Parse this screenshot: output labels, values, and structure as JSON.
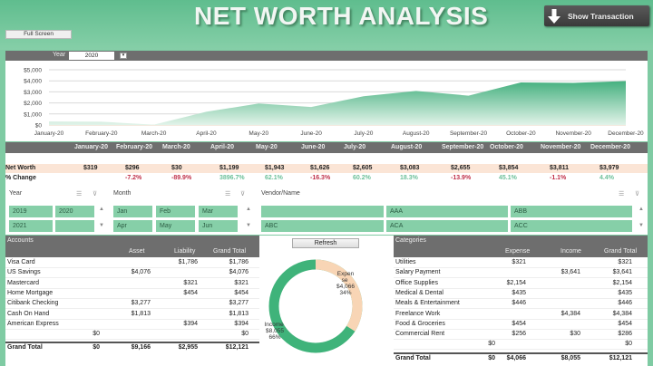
{
  "header": {
    "title": "NET WORTH ANALYSIS",
    "show_transaction_label": "Show Transaction",
    "full_screen_label": "Full Screen",
    "colors": {
      "accent": "#86cfa8",
      "dark_bar": "#6e6e6e",
      "title": "#f2f6f3"
    }
  },
  "year_filter": {
    "label": "Year",
    "value": "2020"
  },
  "chart_data": {
    "type": "area",
    "title": "",
    "xlabel": "",
    "ylabel": "",
    "categories": [
      "January-20",
      "February-20",
      "March-20",
      "April-20",
      "May-20",
      "June-20",
      "July-20",
      "August-20",
      "September-20",
      "October-20",
      "November-20",
      "December-20"
    ],
    "series": [
      {
        "name": "Net Worth",
        "values": [
          319,
          296,
          30,
          1199,
          1943,
          1626,
          2605,
          3083,
          2655,
          3854,
          3811,
          3979
        ]
      }
    ],
    "y_ticks": [
      "$5,000",
      "$4,000",
      "$3,000",
      "$2,000",
      "$1,000",
      "$0"
    ],
    "ylim": [
      0,
      5000
    ],
    "grid": true,
    "legend": "none"
  },
  "summary": {
    "months": [
      "January-20",
      "February-20",
      "March-20",
      "April-20",
      "May-20",
      "June-20",
      "July-20",
      "August-20",
      "September-20",
      "October-20",
      "November-20",
      "December-20"
    ],
    "net_worth_label": "Net Worth",
    "change_label": "% Change",
    "net_worth": [
      "$319",
      "$296",
      "$30",
      "$1,199",
      "$1,943",
      "$1,626",
      "$2,605",
      "$3,083",
      "$2,655",
      "$3,854",
      "$3,811",
      "$3,979"
    ],
    "change": [
      "",
      "-7.2%",
      "-89.9%",
      "3896.7%",
      "62.1%",
      "-16.3%",
      "60.2%",
      "18.3%",
      "-13.9%",
      "45.1%",
      "-1.1%",
      "4.4%"
    ]
  },
  "slicers": {
    "year": {
      "title": "Year",
      "items": [
        "2019",
        "2020",
        "2021",
        ""
      ]
    },
    "month": {
      "title": "Month",
      "items": [
        "Jan",
        "Feb",
        "Mar",
        "Apr",
        "May",
        "Jun"
      ]
    },
    "vendor": {
      "title": "Vendor/Name",
      "items": [
        "",
        "AAA",
        "ABB",
        "ABC",
        "ACA",
        "ACC"
      ]
    }
  },
  "accounts": {
    "title": "Accounts",
    "columns": [
      "Asset",
      "Liability",
      "Grand Total"
    ],
    "rows": [
      {
        "name": "Visa Card",
        "blank": "",
        "asset": "",
        "liability": "$1,786",
        "total": "$1,786"
      },
      {
        "name": "US Savings",
        "blank": "",
        "asset": "$4,076",
        "liability": "",
        "total": "$4,076"
      },
      {
        "name": "Mastercard",
        "blank": "",
        "asset": "",
        "liability": "$321",
        "total": "$321"
      },
      {
        "name": "Home Mortgage",
        "blank": "",
        "asset": "",
        "liability": "$454",
        "total": "$454"
      },
      {
        "name": "Citibank Checking",
        "blank": "",
        "asset": "$3,277",
        "liability": "",
        "total": "$3,277"
      },
      {
        "name": "Cash On Hand",
        "blank": "",
        "asset": "$1,813",
        "liability": "",
        "total": "$1,813"
      },
      {
        "name": "American Express",
        "blank": "",
        "asset": "",
        "liability": "$394",
        "total": "$394"
      },
      {
        "name": "",
        "blank": "$0",
        "asset": "",
        "liability": "",
        "total": "$0"
      }
    ],
    "total": {
      "name": "Grand Total",
      "blank": "$0",
      "asset": "$9,166",
      "liability": "$2,955",
      "total": "$12,121"
    }
  },
  "middle": {
    "refresh_label": "Refresh",
    "donut": {
      "expense_label": "Expen se",
      "expense_value": "$4,066",
      "expense_pct": "34%",
      "income_label": "Income",
      "income_value": "$8,055",
      "income_pct": "66%",
      "expense_color": "#f8d5b5",
      "income_color": "#3fb37a"
    }
  },
  "categories": {
    "title": "Categories",
    "columns": [
      "Expense",
      "Income",
      "Grand Total"
    ],
    "rows": [
      {
        "name": "Utilities",
        "blank": "",
        "expense": "$321",
        "income": "",
        "total": "$321"
      },
      {
        "name": "Salary Payment",
        "blank": "",
        "expense": "",
        "income": "$3,641",
        "total": "$3,641"
      },
      {
        "name": "Office Supplies",
        "blank": "",
        "expense": "$2,154",
        "income": "",
        "total": "$2,154"
      },
      {
        "name": "Medical & Dental",
        "blank": "",
        "expense": "$435",
        "income": "",
        "total": "$435"
      },
      {
        "name": "Meals & Entertainment",
        "blank": "",
        "expense": "$446",
        "income": "",
        "total": "$446"
      },
      {
        "name": "Freelance Work",
        "blank": "",
        "expense": "",
        "income": "$4,384",
        "total": "$4,384"
      },
      {
        "name": "Food & Groceries",
        "blank": "",
        "expense": "$454",
        "income": "",
        "total": "$454"
      },
      {
        "name": "Commercial Rent",
        "blank": "",
        "expense": "$256",
        "income": "$30",
        "total": "$286"
      },
      {
        "name": "",
        "blank": "$0",
        "expense": "",
        "income": "",
        "total": "$0"
      }
    ],
    "total": {
      "name": "Grand Total",
      "blank": "$0",
      "expense": "$4,066",
      "income": "$8,055",
      "total": "$12,121"
    }
  }
}
